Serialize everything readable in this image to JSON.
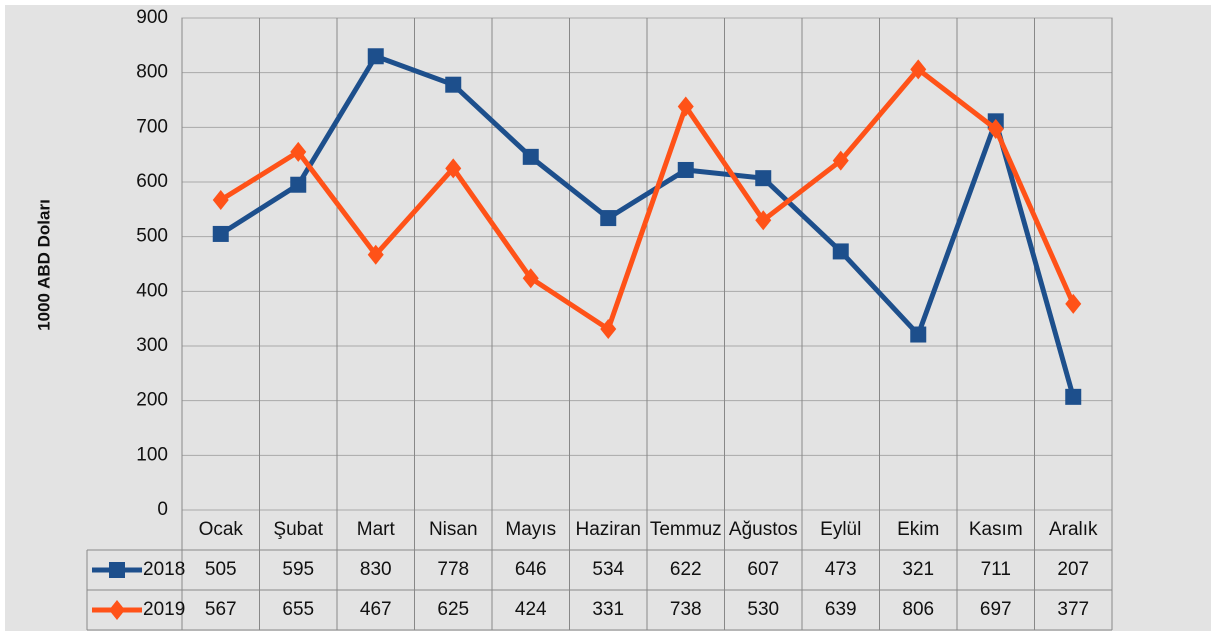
{
  "chart_data": {
    "type": "line",
    "y_label": "1000 ABD Doları",
    "categories": [
      "Ocak",
      "Şubat",
      "Mart",
      "Nisan",
      "Mayıs",
      "Haziran",
      "Temmuz",
      "Ağustos",
      "Eylül",
      "Ekim",
      "Kasım",
      "Aralık"
    ],
    "series": [
      {
        "name": "2018",
        "color": "#1d4f8c",
        "marker": "square",
        "values": [
          505,
          595,
          830,
          778,
          646,
          534,
          622,
          607,
          473,
          321,
          711,
          207
        ]
      },
      {
        "name": "2019",
        "color": "#ff5218",
        "marker": "diamond",
        "values": [
          567,
          655,
          467,
          625,
          424,
          331,
          738,
          530,
          639,
          806,
          697,
          377
        ]
      }
    ],
    "ylim": [
      0,
      900
    ],
    "yticks": [
      0,
      100,
      200,
      300,
      400,
      500,
      600,
      700,
      800,
      900
    ],
    "grid": true,
    "data_table": true
  }
}
